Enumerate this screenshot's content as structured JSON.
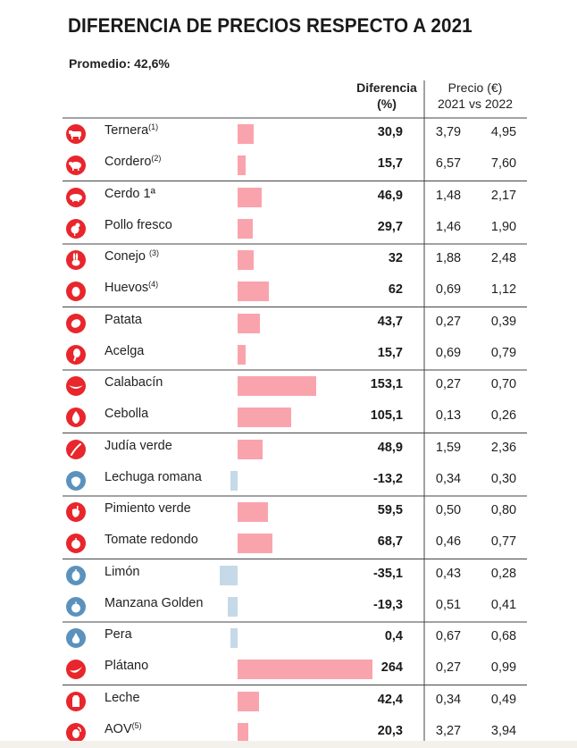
{
  "title": "DIFERENCIA DE PRECIOS RESPECTO A 2021",
  "average": "Promedio: 42,6%",
  "headers": {
    "diff_line1": "Diferencia",
    "diff_line2": "(%)",
    "price_line1": "Precio (€)",
    "price_line2": "2021 vs 2022"
  },
  "colors": {
    "increase": "#f9a4ad",
    "decrease": "#c5d9e8",
    "icon_red": "#e8262c",
    "icon_blue": "#5b92bd"
  },
  "chart_data": {
    "type": "bar",
    "title": "DIFERENCIA DE PRECIOS RESPECTO A 2021",
    "average_label": "Promedio: 42,6%",
    "categories": [
      "Ternera",
      "Cordero",
      "Cerdo 1ª",
      "Pollo fresco",
      "Conejo",
      "Huevos",
      "Patata",
      "Acelga",
      "Calabacín",
      "Cebolla",
      "Judía verde",
      "Lechuga romana",
      "Pimiento verde",
      "Tomate redondo",
      "Limón",
      "Manzana Golden",
      "Pera",
      "Plátano",
      "Leche",
      "AOV"
    ],
    "values": [
      30.9,
      15.7,
      46.9,
      29.7,
      32,
      62,
      43.7,
      15.7,
      153.1,
      105.1,
      48.9,
      -13.2,
      59.5,
      68.7,
      -35.1,
      -19.3,
      0.4,
      264,
      42.4,
      20.3
    ],
    "xlim": [
      -50,
      264
    ],
    "groups": [
      2,
      2,
      2,
      2,
      2,
      2,
      2,
      2,
      2,
      2
    ]
  },
  "rows": [
    {
      "name": "Ternera",
      "note": "(1)",
      "value": "30,9",
      "p2021": "3,79",
      "p2022": "4,95",
      "icon": "cow-icon",
      "icon_color": "red"
    },
    {
      "name": "Cordero",
      "note": "(2)",
      "value": "15,7",
      "p2021": "6,57",
      "p2022": "7,60",
      "icon": "sheep-icon",
      "icon_color": "red"
    },
    {
      "name": "Cerdo 1ª",
      "note": "",
      "value": "46,9",
      "p2021": "1,48",
      "p2022": "2,17",
      "icon": "pig-icon",
      "icon_color": "red"
    },
    {
      "name": "Pollo fresco",
      "note": "",
      "value": "29,7",
      "p2021": "1,46",
      "p2022": "1,90",
      "icon": "chicken-icon",
      "icon_color": "red"
    },
    {
      "name": "Conejo ",
      "note": "(3)",
      "value": "32",
      "p2021": "1,88",
      "p2022": "2,48",
      "icon": "rabbit-icon",
      "icon_color": "red"
    },
    {
      "name": "Huevos",
      "note": "(4)",
      "value": "62",
      "p2021": "0,69",
      "p2022": "1,12",
      "icon": "egg-icon",
      "icon_color": "red"
    },
    {
      "name": "Patata",
      "note": "",
      "value": "43,7",
      "p2021": "0,27",
      "p2022": "0,39",
      "icon": "potato-icon",
      "icon_color": "red"
    },
    {
      "name": "Acelga",
      "note": "",
      "value": "15,7",
      "p2021": "0,69",
      "p2022": "0,79",
      "icon": "chard-icon",
      "icon_color": "red"
    },
    {
      "name": "Calabacín",
      "note": "",
      "value": "153,1",
      "p2021": "0,27",
      "p2022": "0,70",
      "icon": "zucchini-icon",
      "icon_color": "red"
    },
    {
      "name": "Cebolla",
      "note": "",
      "value": "105,1",
      "p2021": "0,13",
      "p2022": "0,26",
      "icon": "onion-icon",
      "icon_color": "red"
    },
    {
      "name": "Judía verde",
      "note": "",
      "value": "48,9",
      "p2021": "1,59",
      "p2022": "2,36",
      "icon": "green-bean-icon",
      "icon_color": "red"
    },
    {
      "name": "Lechuga romana",
      "note": "",
      "value": "-13,2",
      "p2021": "0,34",
      "p2022": "0,30",
      "icon": "lettuce-icon",
      "icon_color": "blue"
    },
    {
      "name": "Pimiento verde",
      "note": "",
      "value": "59,5",
      "p2021": "0,50",
      "p2022": "0,80",
      "icon": "pepper-icon",
      "icon_color": "red"
    },
    {
      "name": "Tomate redondo",
      "note": "",
      "value": "68,7",
      "p2021": "0,46",
      "p2022": "0,77",
      "icon": "tomato-icon",
      "icon_color": "red"
    },
    {
      "name": "Limón",
      "note": "",
      "value": "-35,1",
      "p2021": "0,43",
      "p2022": "0,28",
      "icon": "lemon-icon",
      "icon_color": "blue"
    },
    {
      "name": "Manzana Golden",
      "note": "",
      "value": "-19,3",
      "p2021": "0,51",
      "p2022": "0,41",
      "icon": "apple-icon",
      "icon_color": "blue"
    },
    {
      "name": "Pera",
      "note": "",
      "value": "0,4",
      "p2021": "0,67",
      "p2022": "0,68",
      "icon": "pear-icon",
      "icon_color": "blue"
    },
    {
      "name": "Plátano",
      "note": "",
      "value": "264",
      "p2021": "0,27",
      "p2022": "0,99",
      "icon": "banana-icon",
      "icon_color": "red"
    },
    {
      "name": "Leche",
      "note": "",
      "value": "42,4",
      "p2021": "0,34",
      "p2022": "0,49",
      "icon": "milk-icon",
      "icon_color": "red"
    },
    {
      "name": "AOV",
      "note": "(5)",
      "value": "20,3",
      "p2021": "3,27",
      "p2022": "3,94",
      "icon": "olive-oil-icon",
      "icon_color": "red"
    }
  ]
}
